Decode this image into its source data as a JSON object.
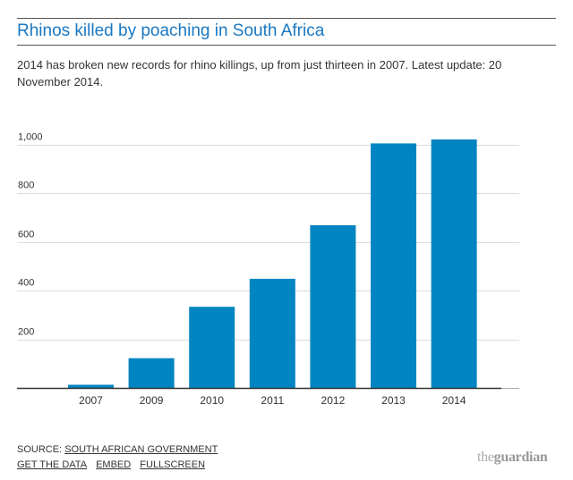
{
  "header": {
    "title": "Rhinos killed by poaching in South Africa",
    "subtitle": "2014 has broken new records for rhino killings, up from just thirteen in 2007. Latest update: 20 November 2014."
  },
  "footer": {
    "source_prefix": "SOURCE: ",
    "source_link": "SOUTH AFRICAN GOVERNMENT",
    "links": [
      "GET THE DATA",
      "EMBED",
      "FULLSCREEN"
    ],
    "logo_the": "the",
    "logo_guardian": "guardian"
  },
  "colors": {
    "bar": "#0084c2",
    "title": "#1a78c2",
    "grid": "#dcdcdc",
    "axis": "#333333"
  },
  "chart_data": {
    "type": "bar",
    "title": "Rhinos killed by poaching in South Africa",
    "xlabel": "",
    "ylabel": "",
    "categories": [
      "2007",
      "2009",
      "2010",
      "2011",
      "2012",
      "2013",
      "2014"
    ],
    "values": [
      13,
      122,
      333,
      448,
      668,
      1004,
      1020
    ],
    "ylim": [
      0,
      1000
    ],
    "yticks": [
      200,
      400,
      600,
      800,
      1000
    ],
    "ytick_labels": [
      "200",
      "400",
      "600",
      "800",
      "1,000"
    ],
    "grid": true,
    "legend": "none"
  }
}
